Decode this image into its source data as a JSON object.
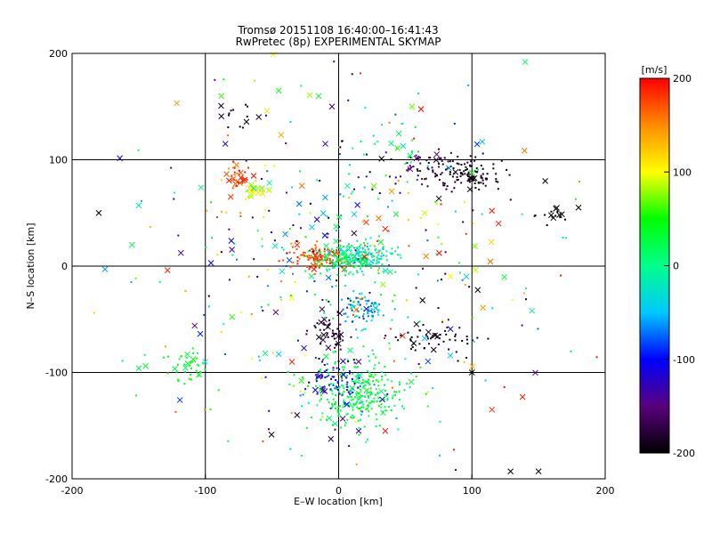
{
  "chart_data": {
    "type": "scatter",
    "title": "Tromsø 20151108 16:40:00–16:41:43",
    "subtitle": "RwPretec (8p) EXPERIMENTAL SKYMAP",
    "xlabel": "E–W location [km]",
    "ylabel": "N–S location [km]",
    "xlim": [
      -200,
      200
    ],
    "ylim": [
      -200,
      200
    ],
    "grid_x": [
      -100,
      0,
      100
    ],
    "grid_y": [
      -100,
      0,
      100
    ],
    "x_ticks": [
      "-200",
      "-100",
      "0",
      "100",
      "200"
    ],
    "y_ticks": [
      "-200",
      "-100",
      "0",
      "100",
      "200"
    ],
    "grid": true,
    "colorbar": {
      "label": "[m/s]",
      "range": [
        -200,
        200
      ],
      "ticks": [
        "-200",
        "-100",
        "0",
        "100",
        "200"
      ],
      "placement": "right",
      "colormap": [
        "#000000",
        "#5a007d",
        "#0000ff",
        "#00c8ff",
        "#00ff8c",
        "#00ff00",
        "#ffff00",
        "#ff8c00",
        "#ff0000"
      ]
    },
    "clusters": [
      {
        "cx": -15,
        "cy": 8,
        "sx": 10,
        "sy": 6,
        "n": 110,
        "vmin": 150,
        "vmax": 200,
        "cross_frac": 0.1
      },
      {
        "cx": 5,
        "cy": 5,
        "sx": 12,
        "sy": 8,
        "n": 180,
        "vmin": -20,
        "vmax": 50,
        "cross_frac": 0.05
      },
      {
        "cx": 25,
        "cy": 10,
        "sx": 10,
        "sy": 6,
        "n": 90,
        "vmin": -60,
        "vmax": 30,
        "cross_frac": 0.05
      },
      {
        "cx": 15,
        "cy": -120,
        "sx": 18,
        "sy": 15,
        "n": 280,
        "vmin": 0,
        "vmax": 50,
        "cross_frac": 0.03
      },
      {
        "cx": -5,
        "cy": -110,
        "sx": 10,
        "sy": 12,
        "n": 70,
        "vmin": -140,
        "vmax": -60,
        "cross_frac": 0.2
      },
      {
        "cx": 18,
        "cy": -40,
        "sx": 7,
        "sy": 8,
        "n": 80,
        "vmin": -90,
        "vmax": -20,
        "cross_frac": 0.05
      },
      {
        "cx": -5,
        "cy": -65,
        "sx": 8,
        "sy": 12,
        "n": 60,
        "vmin": -200,
        "vmax": -160,
        "cross_frac": 0.2
      },
      {
        "cx": 95,
        "cy": 85,
        "sx": 15,
        "sy": 9,
        "n": 110,
        "vmin": -200,
        "vmax": -180,
        "cross_frac": 0.1
      },
      {
        "cx": 65,
        "cy": 95,
        "sx": 12,
        "sy": 8,
        "n": 40,
        "vmin": -200,
        "vmax": -140,
        "cross_frac": 0.1
      },
      {
        "cx": 70,
        "cy": -68,
        "sx": 14,
        "sy": 8,
        "n": 55,
        "vmin": -200,
        "vmax": -170,
        "cross_frac": 0.2
      },
      {
        "cx": -77,
        "cy": 83,
        "sx": 5,
        "sy": 6,
        "n": 35,
        "vmin": 150,
        "vmax": 200,
        "cross_frac": 0.3
      },
      {
        "cx": -63,
        "cy": 70,
        "sx": 5,
        "sy": 5,
        "n": 25,
        "vmin": 70,
        "vmax": 120,
        "cross_frac": 0.3
      },
      {
        "cx": 160,
        "cy": 48,
        "sx": 6,
        "sy": 5,
        "n": 15,
        "vmin": -200,
        "vmax": -190,
        "cross_frac": 0.1
      },
      {
        "cx": -75,
        "cy": 140,
        "sx": 8,
        "sy": 8,
        "n": 14,
        "vmin": -200,
        "vmax": -180,
        "cross_frac": 0.2
      },
      {
        "cx": -110,
        "cy": -95,
        "sx": 10,
        "sy": 7,
        "n": 40,
        "vmin": 10,
        "vmax": 60,
        "cross_frac": 0.3
      },
      {
        "cx": 45,
        "cy": 120,
        "sx": 10,
        "sy": 15,
        "n": 20,
        "vmin": -40,
        "vmax": 80,
        "cross_frac": 0.2
      },
      {
        "cx": 0,
        "cy": 0,
        "sx": 75,
        "sy": 85,
        "n": 420,
        "vmin": -200,
        "vmax": 200,
        "cross_frac": 0.25
      }
    ],
    "crosses": [
      {
        "x": -180,
        "y": 50,
        "v": -200
      },
      {
        "x": 140,
        "y": 192,
        "v": 10
      },
      {
        "x": 129,
        "y": -193,
        "v": -200
      },
      {
        "x": 150,
        "y": -193,
        "v": -200
      },
      {
        "x": 115,
        "y": -135,
        "v": 180
      },
      {
        "x": 138,
        "y": -123,
        "v": 190
      },
      {
        "x": 100,
        "y": -100,
        "v": -200
      },
      {
        "x": -150,
        "y": 57,
        "v": -20
      },
      {
        "x": -155,
        "y": 20,
        "v": 20
      },
      {
        "x": -85,
        "y": 115,
        "v": -120
      },
      {
        "x": -88,
        "y": 160,
        "v": 60
      },
      {
        "x": -45,
        "y": 165,
        "v": 40
      },
      {
        "x": -15,
        "y": 160,
        "v": 40
      },
      {
        "x": 100,
        "y": 88,
        "v": 50
      },
      {
        "x": 163,
        "y": 54,
        "v": -200
      },
      {
        "x": 180,
        "y": 55,
        "v": -200
      },
      {
        "x": 155,
        "y": 80,
        "v": -200
      },
      {
        "x": 115,
        "y": 52,
        "v": 190
      },
      {
        "x": 120,
        "y": 40,
        "v": 190
      },
      {
        "x": 145,
        "y": -42,
        "v": -20
      },
      {
        "x": -150,
        "y": -96,
        "v": 20
      },
      {
        "x": -100,
        "y": -90,
        "v": -20
      },
      {
        "x": -108,
        "y": -56,
        "v": -150
      },
      {
        "x": -55,
        "y": -82,
        "v": 10
      },
      {
        "x": -35,
        "y": -90,
        "v": 190
      },
      {
        "x": 35,
        "y": -155,
        "v": 190
      },
      {
        "x": -5,
        "y": 150,
        "v": -160
      },
      {
        "x": -10,
        "y": 115,
        "v": -130
      },
      {
        "x": 35,
        "y": 35,
        "v": 190
      },
      {
        "x": 30,
        "y": 45,
        "v": 160
      },
      {
        "x": 15,
        "y": -155,
        "v": -130
      },
      {
        "x": -40,
        "y": 30,
        "v": -60
      },
      {
        "x": 55,
        "y": 150,
        "v": 70
      }
    ]
  }
}
